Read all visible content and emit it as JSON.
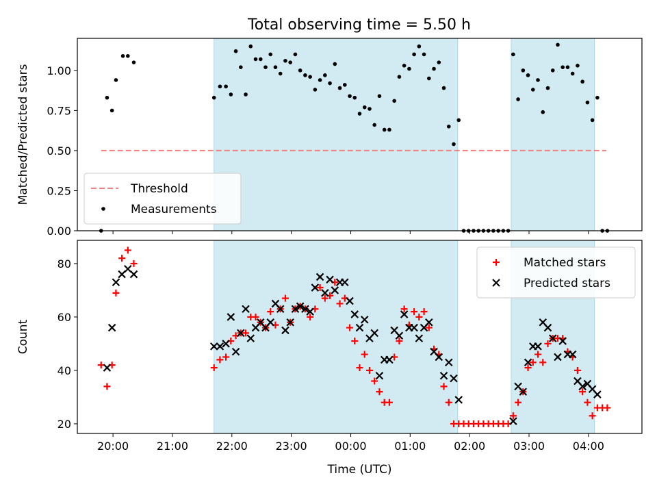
{
  "figure": {
    "title": "Total observing time = 5.50 h"
  },
  "colors": {
    "shade": "#add8e6",
    "threshold": "#f08080",
    "measurements": "#000000",
    "matched": "#ff0000",
    "predicted": "#000000"
  },
  "chart_data": [
    {
      "type": "scatter",
      "title": "Total observing time = 5.50 h",
      "ylabel": "Matched/Predicted stars",
      "xlabel": "",
      "xlim": [
        "19:24",
        "04:54"
      ],
      "ylim": [
        0,
        1.2
      ],
      "grid": false,
      "legend_position": "lower left",
      "x_ticks": [
        "20:00",
        "21:00",
        "22:00",
        "23:00",
        "00:00",
        "01:00",
        "02:00",
        "03:00",
        "04:00"
      ],
      "y_ticks": [
        "0.00",
        "0.25",
        "0.50",
        "0.75",
        "1.00"
      ],
      "shaded_intervals": [
        [
          "21:42",
          "01:48"
        ],
        [
          "02:42",
          "04:06"
        ]
      ],
      "series": [
        {
          "name": "Threshold",
          "style": "dashed-line",
          "points": [
            [
              "19:48",
              0.5
            ],
            [
              "04:18",
              0.5
            ]
          ]
        },
        {
          "name": "Measurements",
          "style": "dot",
          "points": [
            [
              "19:48",
              0.0
            ],
            [
              "19:54",
              0.83
            ],
            [
              "19:59",
              0.75
            ],
            [
              "20:03",
              0.94
            ],
            [
              "20:10",
              1.09
            ],
            [
              "20:15",
              1.09
            ],
            [
              "20:21",
              1.05
            ],
            [
              "21:42",
              0.83
            ],
            [
              "21:48",
              0.9
            ],
            [
              "21:54",
              0.9
            ],
            [
              "21:59",
              0.85
            ],
            [
              "22:04",
              1.12
            ],
            [
              "22:09",
              1.02
            ],
            [
              "22:14",
              0.85
            ],
            [
              "22:19",
              1.15
            ],
            [
              "22:24",
              1.07
            ],
            [
              "22:29",
              1.07
            ],
            [
              "22:34",
              1.02
            ],
            [
              "22:39",
              1.1
            ],
            [
              "22:44",
              1.02
            ],
            [
              "22:49",
              0.98
            ],
            [
              "22:54",
              1.06
            ],
            [
              "22:59",
              1.05
            ],
            [
              "23:04",
              1.1
            ],
            [
              "23:09",
              1.0
            ],
            [
              "23:14",
              0.97
            ],
            [
              "23:19",
              0.96
            ],
            [
              "23:24",
              0.88
            ],
            [
              "23:29",
              0.94
            ],
            [
              "23:34",
              0.97
            ],
            [
              "23:39",
              0.92
            ],
            [
              "23:44",
              1.04
            ],
            [
              "23:49",
              0.89
            ],
            [
              "23:54",
              0.91
            ],
            [
              "23:59",
              0.84
            ],
            [
              "00:04",
              0.83
            ],
            [
              "00:09",
              0.73
            ],
            [
              "00:14",
              0.77
            ],
            [
              "00:19",
              0.76
            ],
            [
              "00:24",
              0.66
            ],
            [
              "00:29",
              0.84
            ],
            [
              "00:34",
              0.63
            ],
            [
              "00:39",
              0.63
            ],
            [
              "00:44",
              0.81
            ],
            [
              "00:49",
              0.96
            ],
            [
              "00:54",
              1.03
            ],
            [
              "00:59",
              1.01
            ],
            [
              "01:04",
              1.1
            ],
            [
              "01:09",
              1.15
            ],
            [
              "01:14",
              1.1
            ],
            [
              "01:19",
              0.95
            ],
            [
              "01:24",
              1.01
            ],
            [
              "01:29",
              1.05
            ],
            [
              "01:34",
              0.89
            ],
            [
              "01:39",
              0.65
            ],
            [
              "01:44",
              0.54
            ],
            [
              "01:49",
              0.69
            ],
            [
              "01:54",
              0.0
            ],
            [
              "01:59",
              0.0
            ],
            [
              "02:04",
              0.0
            ],
            [
              "02:09",
              0.0
            ],
            [
              "02:14",
              0.0
            ],
            [
              "02:19",
              0.0
            ],
            [
              "02:24",
              0.0
            ],
            [
              "02:29",
              0.0
            ],
            [
              "02:34",
              0.0
            ],
            [
              "02:39",
              0.0
            ],
            [
              "02:44",
              1.1
            ],
            [
              "02:49",
              0.82
            ],
            [
              "02:54",
              1.0
            ],
            [
              "02:59",
              0.97
            ],
            [
              "03:04",
              0.88
            ],
            [
              "03:09",
              0.94
            ],
            [
              "03:14",
              0.74
            ],
            [
              "03:19",
              0.89
            ],
            [
              "03:24",
              1.0
            ],
            [
              "03:29",
              1.16
            ],
            [
              "03:34",
              1.02
            ],
            [
              "03:39",
              1.02
            ],
            [
              "03:44",
              0.98
            ],
            [
              "03:49",
              1.03
            ],
            [
              "03:54",
              0.93
            ],
            [
              "03:59",
              0.8
            ],
            [
              "04:04",
              0.69
            ],
            [
              "04:09",
              0.83
            ],
            [
              "04:14",
              0.0
            ],
            [
              "04:19",
              0.0
            ]
          ]
        }
      ]
    },
    {
      "type": "scatter",
      "title": "",
      "xlabel": "Time (UTC)",
      "ylabel": "Count",
      "xlim": [
        "19:24",
        "04:54"
      ],
      "ylim": [
        16.4,
        88.7
      ],
      "grid": false,
      "legend_position": "upper right",
      "x_ticks": [
        "20:00",
        "21:00",
        "22:00",
        "23:00",
        "00:00",
        "01:00",
        "02:00",
        "03:00",
        "04:00"
      ],
      "y_ticks": [
        "20",
        "40",
        "60",
        "80"
      ],
      "shaded_intervals": [
        [
          "21:42",
          "01:48"
        ],
        [
          "02:42",
          "04:06"
        ]
      ],
      "series": [
        {
          "name": "Matched stars",
          "marker": "plus",
          "points": [
            [
              "19:48",
              42
            ],
            [
              "19:54",
              34
            ],
            [
              "19:59",
              42
            ],
            [
              "20:03",
              69
            ],
            [
              "20:09",
              82
            ],
            [
              "20:15",
              85
            ],
            [
              "20:21",
              80
            ],
            [
              "21:42",
              41
            ],
            [
              "21:48",
              44
            ],
            [
              "21:54",
              45
            ],
            [
              "21:59",
              51
            ],
            [
              "22:04",
              53
            ],
            [
              "22:09",
              54
            ],
            [
              "22:14",
              54
            ],
            [
              "22:19",
              60
            ],
            [
              "22:24",
              60
            ],
            [
              "22:29",
              58
            ],
            [
              "22:34",
              56
            ],
            [
              "22:39",
              62
            ],
            [
              "22:44",
              57
            ],
            [
              "22:49",
              63
            ],
            [
              "22:54",
              67
            ],
            [
              "22:59",
              58
            ],
            [
              "23:04",
              63
            ],
            [
              "23:09",
              64
            ],
            [
              "23:14",
              63
            ],
            [
              "23:19",
              60
            ],
            [
              "23:24",
              63
            ],
            [
              "23:29",
              71
            ],
            [
              "23:34",
              67
            ],
            [
              "23:39",
              68
            ],
            [
              "23:44",
              73
            ],
            [
              "23:49",
              65
            ],
            [
              "23:54",
              67
            ],
            [
              "23:59",
              56
            ],
            [
              "00:04",
              51
            ],
            [
              "00:09",
              41
            ],
            [
              "00:14",
              46
            ],
            [
              "00:19",
              40
            ],
            [
              "00:24",
              36
            ],
            [
              "00:29",
              32
            ],
            [
              "00:34",
              28
            ],
            [
              "00:39",
              28
            ],
            [
              "00:44",
              45
            ],
            [
              "00:49",
              51
            ],
            [
              "00:54",
              63
            ],
            [
              "00:59",
              57
            ],
            [
              "01:04",
              62
            ],
            [
              "01:09",
              60
            ],
            [
              "01:14",
              62
            ],
            [
              "01:19",
              56
            ],
            [
              "01:24",
              48
            ],
            [
              "01:29",
              46
            ],
            [
              "01:34",
              34
            ],
            [
              "01:39",
              28
            ],
            [
              "01:44",
              20
            ],
            [
              "01:49",
              20
            ],
            [
              "01:54",
              20
            ],
            [
              "01:59",
              20
            ],
            [
              "02:04",
              20
            ],
            [
              "02:09",
              20
            ],
            [
              "02:14",
              20
            ],
            [
              "02:19",
              20
            ],
            [
              "02:24",
              20
            ],
            [
              "02:29",
              20
            ],
            [
              "02:34",
              20
            ],
            [
              "02:39",
              20
            ],
            [
              "02:44",
              23
            ],
            [
              "02:49",
              28
            ],
            [
              "02:54",
              32
            ],
            [
              "02:59",
              41
            ],
            [
              "03:04",
              43
            ],
            [
              "03:09",
              46
            ],
            [
              "03:14",
              43
            ],
            [
              "03:19",
              50
            ],
            [
              "03:24",
              52
            ],
            [
              "03:29",
              52
            ],
            [
              "03:34",
              52
            ],
            [
              "03:39",
              47
            ],
            [
              "03:44",
              45
            ],
            [
              "03:49",
              40
            ],
            [
              "03:54",
              32
            ],
            [
              "03:59",
              28
            ],
            [
              "04:04",
              23
            ],
            [
              "04:09",
              26
            ],
            [
              "04:14",
              26
            ],
            [
              "04:19",
              26
            ]
          ]
        },
        {
          "name": "Predicted stars",
          "marker": "x",
          "points": [
            [
              "19:54",
              41
            ],
            [
              "19:59",
              56
            ],
            [
              "20:03",
              73
            ],
            [
              "20:09",
              76
            ],
            [
              "20:15",
              78
            ],
            [
              "20:21",
              76
            ],
            [
              "21:42",
              49
            ],
            [
              "21:48",
              49
            ],
            [
              "21:54",
              50
            ],
            [
              "21:59",
              60
            ],
            [
              "22:04",
              47
            ],
            [
              "22:09",
              54
            ],
            [
              "22:14",
              63
            ],
            [
              "22:19",
              52
            ],
            [
              "22:24",
              56
            ],
            [
              "22:29",
              58
            ],
            [
              "22:34",
              56
            ],
            [
              "22:39",
              58
            ],
            [
              "22:44",
              65
            ],
            [
              "22:49",
              63
            ],
            [
              "22:54",
              55
            ],
            [
              "22:59",
              58
            ],
            [
              "23:04",
              63
            ],
            [
              "23:09",
              64
            ],
            [
              "23:14",
              63
            ],
            [
              "23:19",
              62
            ],
            [
              "23:24",
              71
            ],
            [
              "23:29",
              75
            ],
            [
              "23:34",
              69
            ],
            [
              "23:39",
              74
            ],
            [
              "23:44",
              70
            ],
            [
              "23:49",
              73
            ],
            [
              "23:54",
              73
            ],
            [
              "23:59",
              66
            ],
            [
              "00:04",
              61
            ],
            [
              "00:09",
              56
            ],
            [
              "00:14",
              59
            ],
            [
              "00:19",
              52
            ],
            [
              "00:24",
              54
            ],
            [
              "00:29",
              38
            ],
            [
              "00:34",
              44
            ],
            [
              "00:39",
              44
            ],
            [
              "00:44",
              55
            ],
            [
              "00:49",
              53
            ],
            [
              "00:54",
              61
            ],
            [
              "00:59",
              56
            ],
            [
              "01:04",
              56
            ],
            [
              "01:09",
              52
            ],
            [
              "01:14",
              56
            ],
            [
              "01:19",
              58
            ],
            [
              "01:24",
              47
            ],
            [
              "01:29",
              45
            ],
            [
              "01:34",
              38
            ],
            [
              "01:39",
              43
            ],
            [
              "01:44",
              37
            ],
            [
              "01:49",
              29
            ],
            [
              "02:44",
              21
            ],
            [
              "02:49",
              34
            ],
            [
              "02:54",
              32
            ],
            [
              "02:59",
              43
            ],
            [
              "03:04",
              49
            ],
            [
              "03:09",
              49
            ],
            [
              "03:14",
              58
            ],
            [
              "03:19",
              56
            ],
            [
              "03:24",
              52
            ],
            [
              "03:29",
              45
            ],
            [
              "03:34",
              51
            ],
            [
              "03:39",
              46
            ],
            [
              "03:44",
              46
            ],
            [
              "03:49",
              36
            ],
            [
              "03:54",
              34
            ],
            [
              "03:59",
              35
            ],
            [
              "04:04",
              33
            ],
            [
              "04:09",
              31
            ]
          ]
        }
      ]
    }
  ]
}
